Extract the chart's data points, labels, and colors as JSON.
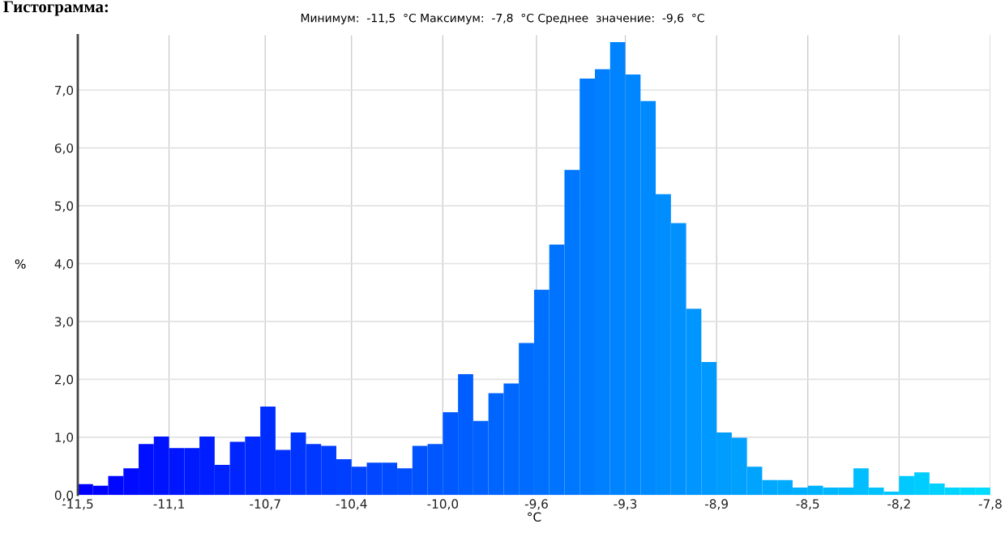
{
  "chart_data": {
    "type": "histogram",
    "title": "Гистограмма:",
    "subtitle": "Минимум:  -11,5  °C Максимум:  -7,8  °C Среднее  значение:  -9,6  °C",
    "xlabel": "°C",
    "ylabel": "%",
    "bins": [
      -11.5,
      -11.4383,
      -11.3767,
      -11.315,
      -11.2533,
      -11.1917,
      -11.13,
      -11.0683,
      -11.0067,
      -10.945,
      -10.8833,
      -10.8217,
      -10.76,
      -10.6983,
      -10.6367,
      -10.575,
      -10.5133,
      -10.4517,
      -10.39,
      -10.3283,
      -10.2667,
      -10.205,
      -10.1433,
      -10.0817,
      -10.02,
      -9.9583,
      -9.8967,
      -9.835,
      -9.7733,
      -9.7117,
      -9.65,
      -9.5883,
      -9.5267,
      -9.465,
      -9.4033,
      -9.3417,
      -9.28,
      -9.2183,
      -9.1567,
      -9.095,
      -9.0333,
      -8.9717,
      -8.91,
      -8.8483,
      -8.7867,
      -8.725,
      -8.6633,
      -8.6017,
      -8.54,
      -8.4783,
      -8.4167,
      -8.355,
      -8.2933,
      -8.2317,
      -8.17,
      -8.1083,
      -8.0467,
      -7.985,
      -7.9233,
      -7.8617,
      -7.8
    ],
    "values": [
      0.19,
      0.16,
      0.33,
      0.46,
      0.88,
      1.01,
      0.81,
      0.81,
      1.01,
      0.52,
      0.92,
      1.01,
      1.53,
      0.78,
      1.08,
      0.88,
      0.85,
      0.62,
      0.49,
      0.56,
      0.56,
      0.46,
      0.85,
      0.88,
      1.43,
      2.09,
      1.28,
      1.76,
      1.93,
      2.63,
      3.55,
      4.33,
      5.62,
      7.2,
      7.36,
      7.83,
      7.27,
      6.81,
      5.2,
      4.7,
      3.22,
      2.3,
      1.08,
      0.99,
      0.49,
      0.26,
      0.26,
      0.13,
      0.16,
      0.13,
      0.13,
      0.46,
      0.13,
      0.06,
      0.33,
      0.39,
      0.2,
      0.13,
      0.13,
      0.13
    ],
    "colors": [
      "#0000ff",
      "#0004ff",
      "#0007ff",
      "#000bff",
      "#000fff",
      "#0013ff",
      "#0016ff",
      "#001aff",
      "#001eff",
      "#0022ff",
      "#0025ff",
      "#0029ff",
      "#002dff",
      "#0030ff",
      "#0034ff",
      "#0038ff",
      "#003cff",
      "#003fff",
      "#0043ff",
      "#0047ff",
      "#004bff",
      "#004eff",
      "#0052ff",
      "#0056ff",
      "#0059ff",
      "#005dff",
      "#0061ff",
      "#0065ff",
      "#0068ff",
      "#006cff",
      "#0070ff",
      "#0074ff",
      "#0077ff",
      "#007bff",
      "#007fff",
      "#0083ff",
      "#0086ff",
      "#008aff",
      "#008eff",
      "#0091ff",
      "#0095ff",
      "#0099ff",
      "#009dff",
      "#00a0ff",
      "#00a4ff",
      "#00a8ff",
      "#00abff",
      "#00afff",
      "#00b3ff",
      "#00b7ff",
      "#00baff",
      "#00beff",
      "#00c2ff",
      "#00c6ff",
      "#00c9ff",
      "#00cdff",
      "#00d1ff",
      "#00d4ff",
      "#00d8ff",
      "#00dcff"
    ],
    "xlim": [
      -11.5,
      -7.8
    ],
    "xticks": [
      {
        "value": -11.5,
        "label": "-11,5"
      },
      {
        "value": -11.13,
        "label": "-11,1"
      },
      {
        "value": -10.74,
        "label": "-10,7"
      },
      {
        "value": -10.39,
        "label": "-10,4"
      },
      {
        "value": -10.02,
        "label": "-10,0"
      },
      {
        "value": -9.64,
        "label": "-9,6"
      },
      {
        "value": -9.28,
        "label": "-9,3"
      },
      {
        "value": -8.91,
        "label": "-8,9"
      },
      {
        "value": -8.54,
        "label": "-8,5"
      },
      {
        "value": -8.17,
        "label": "-8,2"
      },
      {
        "value": -7.8,
        "label": "-7,8"
      }
    ],
    "ylim": [
      0,
      7.95
    ],
    "yticks": [
      {
        "value": 0,
        "label": "0,0"
      },
      {
        "value": 1,
        "label": "1,0"
      },
      {
        "value": 2,
        "label": "2,0"
      },
      {
        "value": 3,
        "label": "3,0"
      },
      {
        "value": 4,
        "label": "4,0"
      },
      {
        "value": 5,
        "label": "5,0"
      },
      {
        "value": 6,
        "label": "6,0"
      },
      {
        "value": 7,
        "label": "7,0"
      }
    ],
    "grid": true
  }
}
